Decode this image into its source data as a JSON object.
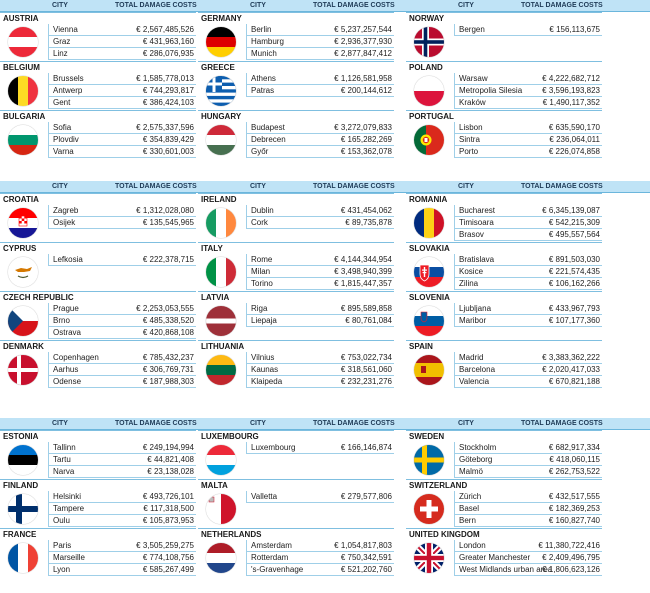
{
  "headers": {
    "city": "CITY",
    "damage": "TOTAL DAMAGE COSTS"
  },
  "blocks": [
    {
      "columns": [
        [
          {
            "name": "AUSTRIA",
            "flag": "austria-flag",
            "cities": [
              [
                "Vienna",
                "€ 2,567,485,526"
              ],
              [
                "Graz",
                "€ 431,963,160"
              ],
              [
                "Linz",
                "€ 286,076,935"
              ]
            ]
          },
          {
            "name": "BELGIUM",
            "flag": "belgium-flag",
            "cities": [
              [
                "Brussels",
                "€ 1,585,778,013"
              ],
              [
                "Antwerp",
                "€ 744,293,817"
              ],
              [
                "Gent",
                "€ 386,424,103"
              ]
            ]
          },
          {
            "name": "BULGARIA",
            "flag": "bulgaria-flag",
            "cities": [
              [
                "Sofia",
                "€ 2,575,337,596"
              ],
              [
                "Plovdiv",
                "€ 354,839,429"
              ],
              [
                "Varna",
                "€ 330,601,003"
              ]
            ]
          }
        ],
        [
          {
            "name": "GERMANY",
            "flag": "germany-flag",
            "cities": [
              [
                "Berlin",
                "€ 5,237,257,544"
              ],
              [
                "Hamburg",
                "€ 2,936,377,930"
              ],
              [
                "Munich",
                "€ 2,877,847,412"
              ]
            ]
          },
          {
            "name": "GREECE",
            "flag": "greece-flag",
            "cities": [
              [
                "Athens",
                "€ 1,126,581,958"
              ],
              [
                "Patras",
                "€ 200,144,612"
              ]
            ]
          },
          {
            "name": "HUNGARY",
            "flag": "hungary-flag",
            "cities": [
              [
                "Budapest",
                "€ 3,272,079,833"
              ],
              [
                "Debrecen",
                "€ 165,282,269"
              ],
              [
                "Győr",
                "€ 153,362,078"
              ]
            ]
          }
        ],
        [
          {
            "name": "NORWAY",
            "flag": "norway-flag",
            "cities": [
              [
                "Bergen",
                "€ 156,113,675"
              ]
            ]
          },
          {
            "name": "POLAND",
            "flag": "poland-flag",
            "cities": [
              [
                "Warsaw",
                "€ 4,222,682,712"
              ],
              [
                "Metropolia Silesia",
                "€ 3,596,193,823"
              ],
              [
                "Kraków",
                "€ 1,490,117,352"
              ]
            ]
          },
          {
            "name": "PORTUGAL",
            "flag": "portugal-flag",
            "cities": [
              [
                "Lisbon",
                "€ 635,590,170"
              ],
              [
                "Sintra",
                "€ 236,064,011"
              ],
              [
                "Porto",
                "€ 226,074,858"
              ]
            ]
          }
        ]
      ]
    },
    {
      "columns": [
        [
          {
            "name": "CROATIA",
            "flag": "croatia-flag",
            "cities": [
              [
                "Zagreb",
                "€ 1,312,028,080"
              ],
              [
                "Osijek",
                "€ 135,545,965"
              ]
            ]
          },
          {
            "name": "CYPRUS",
            "flag": "cyprus-flag",
            "cities": [
              [
                "Lefkosia",
                "€ 222,378,715"
              ]
            ]
          },
          {
            "name": "CZECH REPUBLIC",
            "flag": "czech-flag",
            "cities": [
              [
                "Prague",
                "€ 2,253,053,555"
              ],
              [
                "Brno",
                "€ 485,338,520"
              ],
              [
                "Ostrava",
                "€ 420,868,108"
              ]
            ]
          },
          {
            "name": "DENMARK",
            "flag": "denmark-flag",
            "cities": [
              [
                "Copenhagen",
                "€ 785,432,237"
              ],
              [
                "Aarhus",
                "€ 306,769,731"
              ],
              [
                "Odense",
                "€ 187,988,303"
              ]
            ]
          }
        ],
        [
          {
            "name": "IRELAND",
            "flag": "ireland-flag",
            "cities": [
              [
                "Dublin",
                "€ 431,454,062"
              ],
              [
                "Cork",
                "€ 89,735,878"
              ]
            ]
          },
          {
            "name": "ITALY",
            "flag": "italy-flag",
            "cities": [
              [
                "Rome",
                "€ 4,144,344,954"
              ],
              [
                "Milan",
                "€ 3,498,940,399"
              ],
              [
                "Torino",
                "€ 1,815,447,357"
              ]
            ]
          },
          {
            "name": "LATVIA",
            "flag": "latvia-flag",
            "cities": [
              [
                "Riga",
                "€ 895,589,858"
              ],
              [
                "Liepaja",
                "€ 80,761,084"
              ]
            ]
          },
          {
            "name": "LITHUANIA",
            "flag": "lithuania-flag",
            "cities": [
              [
                "Vilnius",
                "€ 753,022,734"
              ],
              [
                "Kaunas",
                "€ 318,561,060"
              ],
              [
                "Klaipeda",
                "€ 232,231,276"
              ]
            ]
          }
        ],
        [
          {
            "name": "ROMANIA",
            "flag": "romania-flag",
            "cities": [
              [
                "Bucharest",
                "€ 6,345,139,087"
              ],
              [
                "Timisoara",
                "€ 542,215,309"
              ],
              [
                "Brasov",
                "€ 495,557,564"
              ]
            ]
          },
          {
            "name": "SLOVAKIA",
            "flag": "slovakia-flag",
            "cities": [
              [
                "Bratislava",
                "€ 891,503,030"
              ],
              [
                "Kosice",
                "€ 221,574,435"
              ],
              [
                "Zilina",
                "€ 106,162,266"
              ]
            ]
          },
          {
            "name": "SLOVENIA",
            "flag": "slovenia-flag",
            "cities": [
              [
                "Ljubljana",
                "€ 433,967,793"
              ],
              [
                "Maribor",
                "€ 107,177,360"
              ]
            ]
          },
          {
            "name": "SPAIN",
            "flag": "spain-flag",
            "cities": [
              [
                "Madrid",
                "€ 3,383,362,222"
              ],
              [
                "Barcelona",
                "€ 2,020,417,033"
              ],
              [
                "Valencia",
                "€ 670,821,188"
              ]
            ]
          }
        ]
      ]
    },
    {
      "columns": [
        [
          {
            "name": "ESTONIA",
            "flag": "estonia-flag",
            "cities": [
              [
                "Tallinn",
                "€ 249,194,994"
              ],
              [
                "Tartu",
                "€ 44,821,408"
              ],
              [
                "Narva",
                "€ 23,138,028"
              ]
            ]
          },
          {
            "name": "FINLAND",
            "flag": "finland-flag",
            "cities": [
              [
                "Helsinki",
                "€ 493,726,101"
              ],
              [
                "Tampere",
                "€ 117,318,500"
              ],
              [
                "Oulu",
                "€ 105,873,953"
              ]
            ]
          },
          {
            "name": "FRANCE",
            "flag": "france-flag",
            "cities": [
              [
                "Paris",
                "€ 3,505,259,275"
              ],
              [
                "Marseille",
                "€ 774,108,756"
              ],
              [
                "Lyon",
                "€ 585,267,499"
              ]
            ]
          }
        ],
        [
          {
            "name": "LUXEMBOURG",
            "flag": "luxembourg-flag",
            "cities": [
              [
                "Luxembourg",
                "€ 166,146,874"
              ]
            ]
          },
          {
            "name": "MALTA",
            "flag": "malta-flag",
            "cities": [
              [
                "Valletta",
                "€ 279,577,806"
              ]
            ]
          },
          {
            "name": "NETHERLANDS",
            "flag": "netherlands-flag",
            "cities": [
              [
                "Amsterdam",
                "€ 1,054,817,803"
              ],
              [
                "Rotterdam",
                "€ 750,342,591"
              ],
              [
                "'s-Gravenhage",
                "€ 521,202,760"
              ]
            ]
          }
        ],
        [
          {
            "name": "SWEDEN",
            "flag": "sweden-flag",
            "cities": [
              [
                "Stockholm",
                "€ 682,917,334"
              ],
              [
                "Göteborg",
                "€ 418,060,115"
              ],
              [
                "Malmö",
                "€ 262,753,522"
              ]
            ]
          },
          {
            "name": "SWITZERLAND",
            "flag": "switzerland-flag",
            "cities": [
              [
                "Zürich",
                "€ 432,517,555"
              ],
              [
                "Basel",
                "€ 182,369,253"
              ],
              [
                "Bern",
                "€ 160,827,740"
              ]
            ]
          },
          {
            "name": "UNITED KINGDOM",
            "flag": "uk-flag",
            "cities": [
              [
                "London",
                "€ 11,380,722,416"
              ],
              [
                "Greater Manchester",
                "€ 2,409,496,795"
              ],
              [
                "West Midlands urban area",
                "€ 1,806,623,126"
              ]
            ]
          }
        ]
      ]
    }
  ]
}
